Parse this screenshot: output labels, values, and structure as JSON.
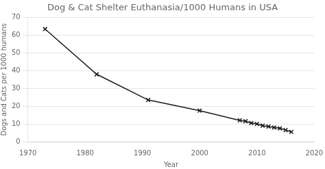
{
  "chart_data": {
    "type": "line",
    "title": "Dog & Cat Shelter Euthanasia/1000 Humans in USA",
    "xlabel": "Year",
    "ylabel": "Dogs and Cats per 1000 humans",
    "x": [
      1973,
      1982,
      1991,
      2000,
      2007,
      2008,
      2009,
      2010,
      2011,
      2012,
      2013,
      2014,
      2015,
      2016
    ],
    "values": [
      63.5,
      38.0,
      23.5,
      17.5,
      12.0,
      11.5,
      10.5,
      10.0,
      9.0,
      8.5,
      8.0,
      7.5,
      6.5,
      5.5
    ],
    "xlim": [
      1970,
      2020
    ],
    "ylim": [
      0,
      70
    ],
    "xticks": [
      1970,
      1980,
      1990,
      2000,
      2010,
      2020
    ],
    "yticks": [
      0,
      10,
      20,
      30,
      40,
      50,
      60,
      70
    ],
    "color": "#1a1a1a",
    "marker": "x",
    "grid": "y"
  }
}
